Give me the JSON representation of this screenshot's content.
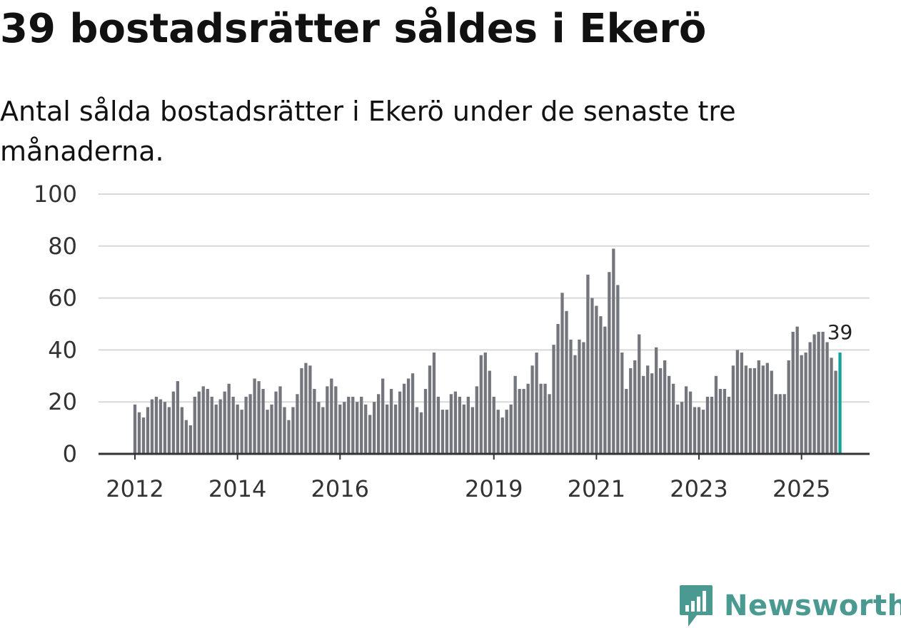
{
  "title": "39 bostadsrätter såldes i Ekerö",
  "subtitle": "Antal sålda bostadsrätter i Ekerö under de senaste tre månaderna.",
  "brand": {
    "name": "Newsworthy",
    "icon": "newsworthy-logo-icon",
    "color": "#4a9a92"
  },
  "chart_data": {
    "type": "bar",
    "title": "39 bostadsrätter såldes i Ekerö",
    "xlabel": "",
    "ylabel": "",
    "ylim": [
      0,
      100
    ],
    "yticks": [
      0,
      20,
      40,
      60,
      80,
      100
    ],
    "grid": true,
    "xtick_labels": [
      {
        "label": "2012",
        "index": 0
      },
      {
        "label": "2014",
        "index": 24
      },
      {
        "label": "2016",
        "index": 48
      },
      {
        "label": "2019",
        "index": 84
      },
      {
        "label": "2021",
        "index": 108
      },
      {
        "label": "2023",
        "index": 132
      },
      {
        "label": "2025",
        "index": 156
      }
    ],
    "colors": {
      "bar": "#75757d",
      "highlight": "#14a39a",
      "grid": "#d8d8d8",
      "axis": "#333333"
    },
    "highlight_label": "39",
    "series": [
      {
        "name": "Antal sålda bostadsrätter (senaste tre månaderna)",
        "start": "2012-01",
        "frequency": "monthly",
        "values": [
          19,
          16,
          14,
          18,
          21,
          22,
          21,
          20,
          18,
          24,
          28,
          18,
          13,
          11,
          22,
          24,
          26,
          25,
          22,
          19,
          21,
          24,
          27,
          22,
          19,
          17,
          22,
          23,
          29,
          28,
          25,
          17,
          19,
          24,
          26,
          18,
          13,
          18,
          23,
          33,
          35,
          34,
          25,
          20,
          18,
          26,
          29,
          26,
          19,
          20,
          22,
          22,
          20,
          22,
          19,
          15,
          20,
          23,
          29,
          19,
          25,
          19,
          24,
          27,
          29,
          31,
          18,
          16,
          25,
          34,
          39,
          22,
          17,
          17,
          23,
          24,
          22,
          19,
          22,
          18,
          26,
          38,
          39,
          32,
          22,
          17,
          14,
          17,
          19,
          30,
          25,
          25,
          27,
          34,
          39,
          27,
          27,
          23,
          42,
          50,
          62,
          55,
          44,
          38,
          44,
          43,
          69,
          60,
          57,
          53,
          49,
          70,
          79,
          65,
          39,
          25,
          33,
          36,
          46,
          30,
          34,
          31,
          41,
          33,
          36,
          30,
          27,
          19,
          20,
          26,
          24,
          18,
          18,
          17,
          22,
          22,
          30,
          25,
          25,
          22,
          34,
          40,
          39,
          34,
          33,
          33,
          36,
          34,
          35,
          32,
          23,
          23,
          23,
          36,
          47,
          49,
          38,
          39,
          43,
          46,
          47,
          47,
          43,
          37,
          32,
          39
        ]
      }
    ]
  }
}
